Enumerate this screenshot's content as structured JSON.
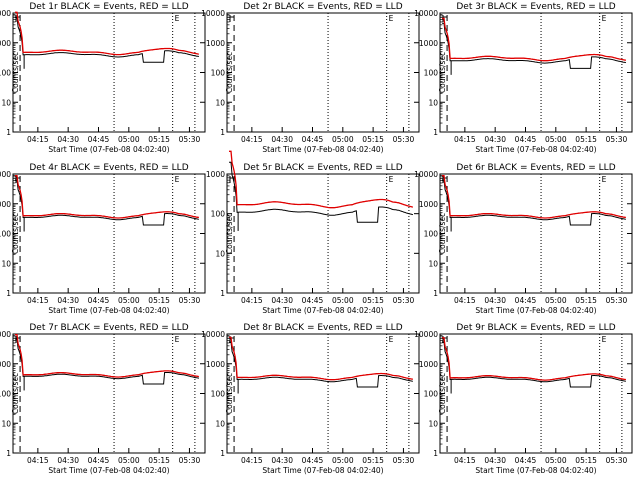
{
  "figure": {
    "background": "#ffffff",
    "axis_color": "#000000",
    "events_color": "#000000",
    "lld_color": "#e00000",
    "marker_letter": "E"
  },
  "chart_data": [
    {
      "type": "line",
      "title": "Det 1r BLACK = Events, RED = LLD",
      "xlabel": "Start Time (07-Feb-08 04:02:40)",
      "ylabel": "Counts/sec",
      "x_ticks": [
        "04:15",
        "04:30",
        "04:45",
        "05:00",
        "05:15",
        "05:30"
      ],
      "y_ticks": [
        "1",
        "10",
        "100",
        "1000",
        "10000"
      ],
      "ylim": [
        1,
        10000
      ],
      "log_y": true,
      "events_level": 400,
      "lld_level": 480,
      "dip": true,
      "has_data": true
    },
    {
      "type": "line",
      "title": "Det 2r BLACK = Events, RED = LLD",
      "xlabel": "Start Time (07-Feb-08 04:02:40)",
      "ylabel": "Counts/sec",
      "x_ticks": [
        "04:15",
        "04:30",
        "04:45",
        "05:00",
        "05:15",
        "05:30"
      ],
      "y_ticks": [
        "1",
        "10",
        "100",
        "1000",
        "10000"
      ],
      "ylim": [
        1,
        10000
      ],
      "log_y": true,
      "events_level": 0,
      "lld_level": 0,
      "dip": false,
      "has_data": false
    },
    {
      "type": "line",
      "title": "Det 3r BLACK = Events, RED = LLD",
      "xlabel": "Start Time (07-Feb-08 04:02:40)",
      "ylabel": "Counts/sec",
      "x_ticks": [
        "04:15",
        "04:30",
        "04:45",
        "05:00",
        "05:15",
        "05:30"
      ],
      "y_ticks": [
        "1",
        "10",
        "100",
        "1000",
        "10000"
      ],
      "ylim": [
        1,
        10000
      ],
      "log_y": true,
      "events_level": 250,
      "lld_level": 300,
      "dip": true,
      "has_data": true
    },
    {
      "type": "line",
      "title": "Det 4r BLACK = Events, RED = LLD",
      "xlabel": "Start Time (07-Feb-08 04:02:40)",
      "ylabel": "Counts/sec",
      "x_ticks": [
        "04:15",
        "04:30",
        "04:45",
        "05:00",
        "05:15",
        "05:30"
      ],
      "y_ticks": [
        "1",
        "10",
        "100",
        "1000",
        "10000"
      ],
      "ylim": [
        1,
        10000
      ],
      "log_y": true,
      "events_level": 350,
      "lld_level": 400,
      "dip": true,
      "has_data": true
    },
    {
      "type": "line",
      "title": "Det 5r BLACK = Events, RED = LLD",
      "xlabel": "Start Time (07-Feb-08 04:02:40)",
      "ylabel": "Counts/sec",
      "x_ticks": [
        "04:15",
        "04:30",
        "04:45",
        "05:00",
        "05:15",
        "05:30"
      ],
      "y_ticks": [
        "1",
        "10",
        "100",
        "1000"
      ],
      "ylim": [
        1,
        1000
      ],
      "log_y": true,
      "events_level": 110,
      "lld_level": 170,
      "dip": true,
      "has_data": true
    },
    {
      "type": "line",
      "title": "Det 6r BLACK = Events, RED = LLD",
      "xlabel": "Start Time (07-Feb-08 04:02:40)",
      "ylabel": "Counts/sec",
      "x_ticks": [
        "04:15",
        "04:30",
        "04:45",
        "05:00",
        "05:15",
        "05:30"
      ],
      "y_ticks": [
        "1",
        "10",
        "100",
        "1000",
        "10000"
      ],
      "ylim": [
        1,
        10000
      ],
      "log_y": true,
      "events_level": 350,
      "lld_level": 400,
      "dip": true,
      "has_data": true
    },
    {
      "type": "line",
      "title": "Det 7r BLACK = Events, RED = LLD",
      "xlabel": "Start Time (07-Feb-08 04:02:40)",
      "ylabel": "Counts/sec",
      "x_ticks": [
        "04:15",
        "04:30",
        "04:45",
        "05:00",
        "05:15",
        "05:30"
      ],
      "y_ticks": [
        "1",
        "10",
        "100",
        "1000",
        "10000"
      ],
      "ylim": [
        1,
        10000
      ],
      "log_y": true,
      "events_level": 380,
      "lld_level": 430,
      "dip": true,
      "has_data": true
    },
    {
      "type": "line",
      "title": "Det 8r BLACK = Events, RED = LLD",
      "xlabel": "Start Time (07-Feb-08 04:02:40)",
      "ylabel": "Counts/sec",
      "x_ticks": [
        "04:15",
        "04:30",
        "04:45",
        "05:00",
        "05:15",
        "05:30"
      ],
      "y_ticks": [
        "1",
        "10",
        "100",
        "1000",
        "10000"
      ],
      "ylim": [
        1,
        10000
      ],
      "log_y": true,
      "events_level": 300,
      "lld_level": 350,
      "dip": true,
      "has_data": true
    },
    {
      "type": "line",
      "title": "Det 9r BLACK = Events, RED = LLD",
      "xlabel": "Start Time (07-Feb-08 04:02:40)",
      "ylabel": "Counts/sec",
      "x_ticks": [
        "04:15",
        "04:30",
        "04:45",
        "05:00",
        "05:15",
        "05:30"
      ],
      "y_ticks": [
        "1",
        "10",
        "100",
        "1000",
        "10000"
      ],
      "ylim": [
        1,
        10000
      ],
      "log_y": true,
      "events_level": 300,
      "lld_level": 340,
      "dip": true,
      "has_data": true
    }
  ]
}
